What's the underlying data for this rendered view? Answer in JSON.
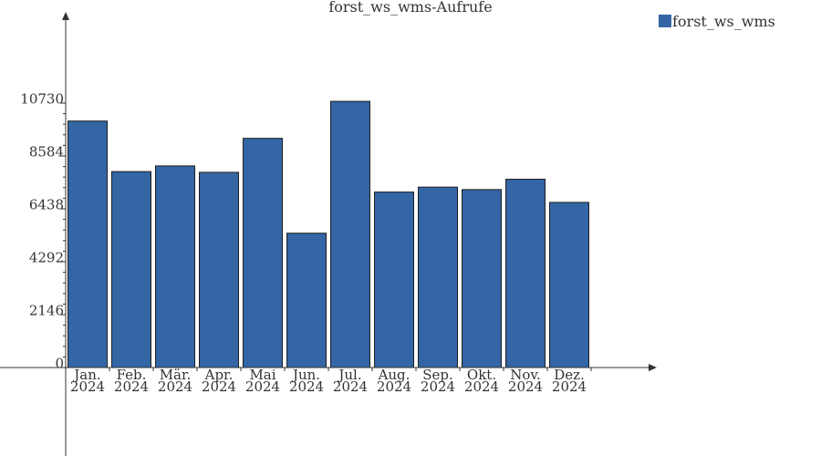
{
  "chart_data": {
    "type": "bar",
    "title": "forst_ws_wms-Aufrufe",
    "categories": [
      [
        "Jan.",
        "2024"
      ],
      [
        "Feb.",
        "2024"
      ],
      [
        "Mär.",
        "2024"
      ],
      [
        "Apr.",
        "2024"
      ],
      [
        "Mai",
        "2024"
      ],
      [
        "Jun.",
        "2024"
      ],
      [
        "Jul.",
        "2024"
      ],
      [
        "Aug.",
        "2024"
      ],
      [
        "Sep.",
        "2024"
      ],
      [
        "Okt.",
        "2024"
      ],
      [
        "Nov.",
        "2024"
      ],
      [
        "Dez.",
        "2024"
      ]
    ],
    "series": [
      {
        "name": "forst_ws_wms",
        "color": "#3465a4",
        "values": [
          10000,
          7950,
          8180,
          7920,
          9300,
          5450,
          10800,
          7120,
          7320,
          7220,
          7640,
          6700
        ]
      }
    ],
    "yticks": [
      "0",
      "2146",
      "4292",
      "6438",
      "8584",
      "10730"
    ],
    "ylim": [
      0,
      10730
    ],
    "grid": false,
    "legend": "top-right"
  }
}
